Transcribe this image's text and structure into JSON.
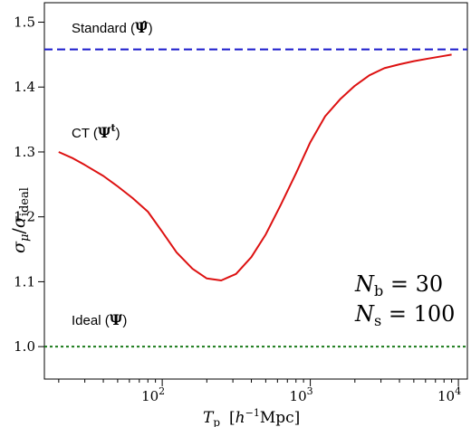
{
  "chart_data": {
    "type": "line",
    "xscale": "log",
    "xlim": [
      16,
      11500
    ],
    "ylim": [
      0.95,
      1.53
    ],
    "xlabel": "T_p [h^-1 Mpc]",
    "ylabel": "σ_μ / σ_ideal",
    "grid": false,
    "x_ticks": [
      {
        "value": 100,
        "base": "10",
        "exp": "2"
      },
      {
        "value": 1000,
        "base": "10",
        "exp": "3"
      },
      {
        "value": 10000,
        "base": "10",
        "exp": "4"
      }
    ],
    "y_ticks": [
      {
        "value": 1.0,
        "label": "1.0"
      },
      {
        "value": 1.1,
        "label": "1.1"
      },
      {
        "value": 1.2,
        "label": "1.2"
      },
      {
        "value": 1.3,
        "label": "1.3"
      },
      {
        "value": 1.4,
        "label": "1.4"
      },
      {
        "value": 1.5,
        "label": "1.5"
      }
    ],
    "hlines": [
      {
        "id": "standard",
        "y": 1.458,
        "color": "#1a1acc",
        "dash": "dashed"
      },
      {
        "id": "ideal",
        "y": 1.0,
        "color": "#1a7a1a",
        "dash": "dotted"
      }
    ],
    "series": [
      {
        "id": "ct",
        "color": "#dd1111",
        "x": [
          20,
          25,
          30,
          40,
          50,
          63,
          80,
          100,
          125,
          160,
          200,
          250,
          315,
          400,
          500,
          630,
          800,
          1000,
          1260,
          1600,
          2000,
          2500,
          3160,
          4000,
          5000,
          6300,
          8000,
          9000
        ],
        "y": [
          1.3,
          1.29,
          1.28,
          1.263,
          1.247,
          1.229,
          1.208,
          1.177,
          1.145,
          1.12,
          1.105,
          1.102,
          1.112,
          1.138,
          1.173,
          1.218,
          1.267,
          1.315,
          1.355,
          1.382,
          1.402,
          1.418,
          1.429,
          1.435,
          1.44,
          1.444,
          1.448,
          1.45
        ]
      }
    ]
  },
  "annotations": {
    "standard": {
      "prefix": "Standard (",
      "symbol": "Ψ̂",
      "suffix": ")"
    },
    "ct": {
      "prefix": "CT (",
      "symbol": "Ψ",
      "sup": "t",
      "suffix": ")"
    },
    "ideal": {
      "prefix": "Ideal (",
      "symbol": "Ψ",
      "suffix": ")"
    },
    "nb": {
      "var": "N",
      "sub": "b",
      "eq": " = 30"
    },
    "ns": {
      "var": "N",
      "sub": "s",
      "eq": " = 100"
    }
  },
  "axis_labels": {
    "x": {
      "var": "T",
      "sub": "p",
      "bracket_open": "[",
      "h": "h",
      "sup": "−1",
      "unit": "Mpc",
      "bracket_close": "]"
    },
    "y": {
      "num": "σ",
      "num_sub": "μ",
      "slash": "/",
      "den": "σ",
      "den_sub": "ideal"
    }
  }
}
